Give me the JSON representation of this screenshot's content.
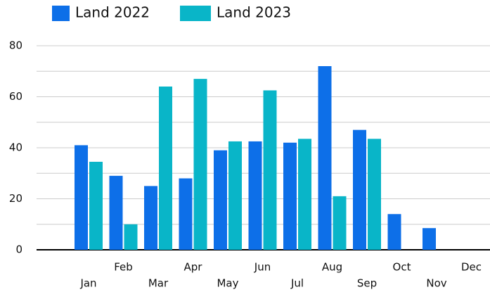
{
  "chart_data": {
    "type": "bar",
    "categories": [
      "Jan",
      "Feb",
      "Mar",
      "Apr",
      "May",
      "Jun",
      "Jul",
      "Aug",
      "Sep",
      "Oct",
      "Nov",
      "Dec"
    ],
    "series": [
      {
        "name": "Land 2022",
        "color": "#0d6fe8",
        "values": [
          41,
          29,
          25,
          28,
          39,
          42.5,
          42,
          72,
          47,
          14,
          8.5,
          null
        ]
      },
      {
        "name": "Land 2023",
        "color": "#09b5c8",
        "values": [
          34.5,
          10,
          64,
          67,
          42.5,
          62.5,
          43.5,
          21,
          43.5,
          null,
          null,
          null
        ]
      }
    ],
    "ylim": [
      0,
      80
    ],
    "yticks": [
      0,
      20,
      40,
      60,
      80
    ],
    "minor_yticks": [
      10,
      30,
      50,
      70
    ],
    "grid": true,
    "legend": "top"
  }
}
